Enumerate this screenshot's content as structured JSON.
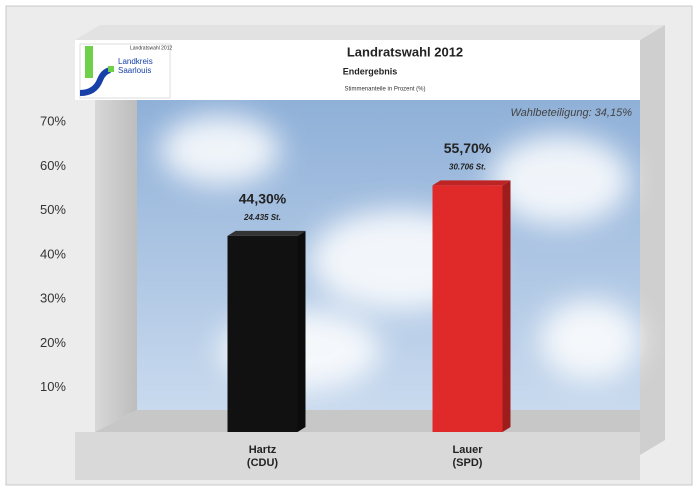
{
  "chart_data": {
    "type": "bar3d",
    "title": "Landratswahl 2012",
    "subtitle": "Endergebnis",
    "axis_note": "Stimmenanteile in Prozent (%)",
    "annotation": "Wahlbeteiligung: 34,15%",
    "logo_text": [
      "Landratswahl 2012",
      "Landkreis",
      "Saarlouis"
    ],
    "categories": [
      "Hartz\n(CDU)",
      "Lauer\n(SPD)"
    ],
    "values": [
      44.3,
      55.7
    ],
    "value_labels": [
      "44,30%",
      "55,70%"
    ],
    "votes": [
      24435,
      30706
    ],
    "vote_labels": [
      "24.435 St.",
      "30.706 St."
    ],
    "colors": [
      "#111111",
      "#e02a2a"
    ],
    "ylim": [
      0,
      75
    ],
    "yticks": [
      {
        "value": 10,
        "label": "10%"
      },
      {
        "value": 20,
        "label": "20%"
      },
      {
        "value": 30,
        "label": "30%"
      },
      {
        "value": 40,
        "label": "40%"
      },
      {
        "value": 50,
        "label": "50%"
      },
      {
        "value": 60,
        "label": "60%"
      },
      {
        "value": 70,
        "label": "70%"
      }
    ],
    "grid": false
  }
}
